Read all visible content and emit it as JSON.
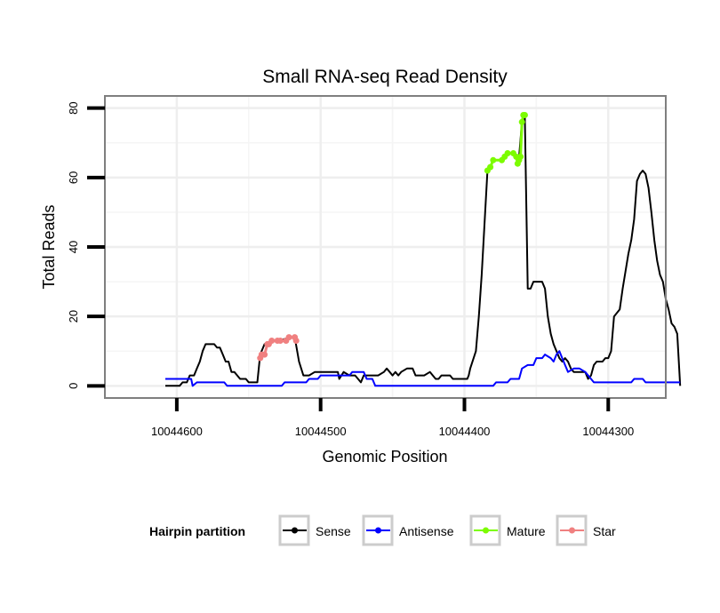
{
  "chart_data": {
    "type": "line",
    "title": "Small RNA-seq Read Density",
    "xlabel": "Genomic Position",
    "ylabel": "Total Reads",
    "x_reversed": true,
    "xlim": [
      10044650,
      10044260
    ],
    "ylim": [
      -3.5,
      83.5
    ],
    "x_ticks": [
      10044600,
      10044500,
      10044400,
      10044300
    ],
    "x_tick_labels": [
      "10044600",
      "10044500",
      "10044400",
      "10044300"
    ],
    "y_ticks": [
      0,
      20,
      40,
      60,
      80
    ],
    "y_tick_labels": [
      "0",
      "20",
      "40",
      "60",
      "80"
    ],
    "grid": true,
    "legend": {
      "title": "Hairpin partition",
      "position": "bottom",
      "entries": [
        {
          "name": "Sense",
          "color": "#000000"
        },
        {
          "name": "Antisense",
          "color": "#0000ff"
        },
        {
          "name": "Mature",
          "color": "#7cfc00"
        },
        {
          "name": "Star",
          "color": "#f08080"
        }
      ]
    },
    "series": [
      {
        "name": "Sense",
        "color": "#000000",
        "points": [
          [
            10044608,
            0
          ],
          [
            10044598,
            0
          ],
          [
            10044596,
            1
          ],
          [
            10044593,
            1
          ],
          [
            10044591,
            3
          ],
          [
            10044588,
            3
          ],
          [
            10044586,
            5
          ],
          [
            10044584,
            7
          ],
          [
            10044582,
            10
          ],
          [
            10044580,
            12
          ],
          [
            10044574,
            12
          ],
          [
            10044572,
            11
          ],
          [
            10044570,
            11
          ],
          [
            10044568,
            9
          ],
          [
            10044566,
            7
          ],
          [
            10044564,
            7
          ],
          [
            10044562,
            4
          ],
          [
            10044560,
            4
          ],
          [
            10044558,
            3
          ],
          [
            10044556,
            2
          ],
          [
            10044552,
            2
          ],
          [
            10044550,
            1
          ],
          [
            10044544,
            1
          ],
          [
            10044542,
            9
          ],
          [
            10044539,
            12
          ],
          [
            10044536,
            12
          ],
          [
            10044534,
            13
          ],
          [
            10044530,
            13
          ],
          [
            10044528,
            13
          ],
          [
            10044522,
            14
          ],
          [
            10044518,
            14
          ],
          [
            10044515,
            7
          ],
          [
            10044512,
            3
          ],
          [
            10044508,
            3
          ],
          [
            10044504,
            4
          ],
          [
            10044499,
            4
          ],
          [
            10044488,
            4
          ],
          [
            10044487,
            2
          ],
          [
            10044484,
            4
          ],
          [
            10044480,
            3
          ],
          [
            10044476,
            3
          ],
          [
            10044474,
            2
          ],
          [
            10044472,
            1
          ],
          [
            10044470,
            3
          ],
          [
            10044464,
            3
          ],
          [
            10044460,
            3
          ],
          [
            10044456,
            4
          ],
          [
            10044454,
            5
          ],
          [
            10044452,
            4
          ],
          [
            10044450,
            3
          ],
          [
            10044448,
            4
          ],
          [
            10044446,
            3
          ],
          [
            10044444,
            4
          ],
          [
            10044440,
            5
          ],
          [
            10044436,
            5
          ],
          [
            10044434,
            3
          ],
          [
            10044428,
            3
          ],
          [
            10044424,
            4
          ],
          [
            10044422,
            3
          ],
          [
            10044420,
            2
          ],
          [
            10044418,
            2
          ],
          [
            10044416,
            3
          ],
          [
            10044410,
            3
          ],
          [
            10044408,
            2
          ],
          [
            10044398,
            2
          ],
          [
            10044397,
            3
          ],
          [
            10044396,
            5
          ],
          [
            10044392,
            10
          ],
          [
            10044390,
            20
          ],
          [
            10044388,
            32
          ],
          [
            10044384,
            62
          ],
          [
            10044382,
            63
          ],
          [
            10044380,
            65
          ],
          [
            10044374,
            65
          ],
          [
            10044372,
            66
          ],
          [
            10044370,
            67
          ],
          [
            10044366,
            67
          ],
          [
            10044364,
            66
          ],
          [
            10044363,
            64
          ],
          [
            10044362,
            66
          ],
          [
            10044360,
            76
          ],
          [
            10044359,
            78
          ],
          [
            10044358,
            78
          ],
          [
            10044356,
            28
          ],
          [
            10044354,
            28
          ],
          [
            10044352,
            30
          ],
          [
            10044346,
            30
          ],
          [
            10044344,
            28
          ],
          [
            10044342,
            20
          ],
          [
            10044340,
            15
          ],
          [
            10044338,
            12
          ],
          [
            10044334,
            8
          ],
          [
            10044332,
            7
          ],
          [
            10044330,
            8
          ],
          [
            10044328,
            7
          ],
          [
            10044326,
            5
          ],
          [
            10044324,
            4
          ],
          [
            10044316,
            4
          ],
          [
            10044314,
            2
          ],
          [
            10044312,
            3
          ],
          [
            10044310,
            6
          ],
          [
            10044308,
            7
          ],
          [
            10044304,
            7
          ],
          [
            10044302,
            8
          ],
          [
            10044300,
            8
          ],
          [
            10044298,
            10
          ],
          [
            10044296,
            20
          ],
          [
            10044294,
            21
          ],
          [
            10044292,
            22
          ],
          [
            10044290,
            28
          ],
          [
            10044288,
            33
          ],
          [
            10044286,
            38
          ],
          [
            10044284,
            42
          ],
          [
            10044282,
            48
          ],
          [
            10044280,
            59
          ],
          [
            10044278,
            61
          ],
          [
            10044276,
            62
          ],
          [
            10044274,
            61
          ],
          [
            10044272,
            57
          ],
          [
            10044270,
            50
          ],
          [
            10044268,
            42
          ],
          [
            10044266,
            36
          ],
          [
            10044264,
            32
          ],
          [
            10044262,
            30
          ],
          [
            10044260,
            25
          ],
          [
            10044258,
            22
          ],
          [
            10044256,
            18
          ],
          [
            10044254,
            17
          ],
          [
            10044252,
            15
          ],
          [
            10044250,
            0
          ]
        ]
      },
      {
        "name": "Antisense",
        "color": "#0000ff",
        "points": [
          [
            10044608,
            2
          ],
          [
            10044590,
            2
          ],
          [
            10044589,
            0
          ],
          [
            10044586,
            1
          ],
          [
            10044567,
            1
          ],
          [
            10044565,
            0
          ],
          [
            10044527,
            0
          ],
          [
            10044525,
            1
          ],
          [
            10044510,
            1
          ],
          [
            10044508,
            2
          ],
          [
            10044502,
            2
          ],
          [
            10044500,
            3
          ],
          [
            10044480,
            3
          ],
          [
            10044478,
            4
          ],
          [
            10044470,
            4
          ],
          [
            10044468,
            2
          ],
          [
            10044464,
            2
          ],
          [
            10044462,
            0
          ],
          [
            10044400,
            0
          ],
          [
            10044380,
            0
          ],
          [
            10044378,
            1
          ],
          [
            10044370,
            1
          ],
          [
            10044368,
            2
          ],
          [
            10044362,
            2
          ],
          [
            10044360,
            5
          ],
          [
            10044356,
            6
          ],
          [
            10044352,
            6
          ],
          [
            10044350,
            8
          ],
          [
            10044346,
            8
          ],
          [
            10044344,
            9
          ],
          [
            10044340,
            8
          ],
          [
            10044338,
            7
          ],
          [
            10044336,
            9
          ],
          [
            10044334,
            10
          ],
          [
            10044332,
            8
          ],
          [
            10044330,
            6
          ],
          [
            10044328,
            4
          ],
          [
            10044324,
            5
          ],
          [
            10044320,
            5
          ],
          [
            10044316,
            4
          ],
          [
            10044312,
            2
          ],
          [
            10044310,
            1
          ],
          [
            10044284,
            1
          ],
          [
            10044282,
            2
          ],
          [
            10044276,
            2
          ],
          [
            10044274,
            1
          ],
          [
            10044250,
            1
          ]
        ]
      },
      {
        "name": "Mature",
        "color": "#7cfc00",
        "points": [
          [
            10044384,
            62
          ],
          [
            10044382,
            63
          ],
          [
            10044380,
            65
          ],
          [
            10044374,
            65
          ],
          [
            10044372,
            66
          ],
          [
            10044370,
            67
          ],
          [
            10044366,
            67
          ],
          [
            10044364,
            66
          ],
          [
            10044363,
            64
          ],
          [
            10044362,
            65
          ],
          [
            10044361,
            66
          ],
          [
            10044360,
            76
          ],
          [
            10044359,
            78
          ],
          [
            10044358,
            78
          ]
        ]
      },
      {
        "name": "Star",
        "color": "#f08080",
        "points": [
          [
            10044542,
            8
          ],
          [
            10044541,
            9
          ],
          [
            10044539,
            9
          ],
          [
            10044537,
            12
          ],
          [
            10044536,
            12
          ],
          [
            10044534,
            13
          ],
          [
            10044530,
            13
          ],
          [
            10044528,
            13
          ],
          [
            10044524,
            13
          ],
          [
            10044522,
            14
          ],
          [
            10044518,
            14
          ],
          [
            10044517,
            13
          ]
        ]
      }
    ]
  }
}
